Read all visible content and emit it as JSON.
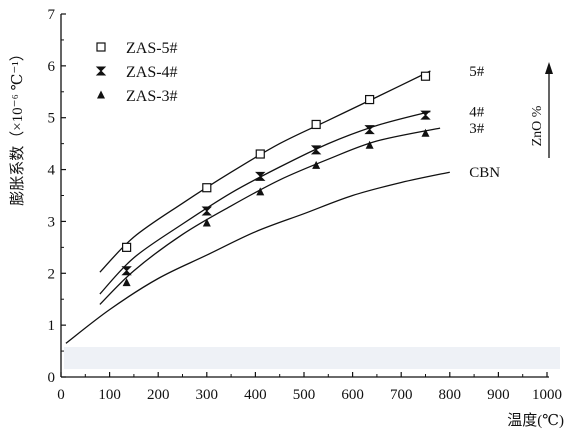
{
  "chart_data": {
    "type": "line",
    "xlabel": "温度(℃)",
    "ylabel": "膨胀系数（×10⁻⁶ ℃⁻¹）",
    "xlim": [
      0,
      1000
    ],
    "ylim": [
      0,
      7
    ],
    "xticks": [
      0,
      100,
      200,
      300,
      400,
      500,
      600,
      700,
      800,
      900,
      1000
    ],
    "yticks": [
      0,
      1,
      2,
      3,
      4,
      5,
      6,
      7
    ],
    "grid": false,
    "legend_position": "top-left",
    "side_label": "ZnO %",
    "series": [
      {
        "name": "ZAS-5#",
        "curve_label": "5#",
        "marker": "open-square",
        "points": {
          "x": [
            135,
            300,
            410,
            525,
            635,
            750
          ],
          "y": [
            2.5,
            3.65,
            4.3,
            4.87,
            5.35,
            5.8
          ]
        },
        "fit": {
          "x": [
            80,
            150,
            250,
            350,
            450,
            550,
            650,
            760
          ],
          "y": [
            2.02,
            2.7,
            3.35,
            3.95,
            4.5,
            4.95,
            5.4,
            5.9
          ]
        }
      },
      {
        "name": "ZAS-4#",
        "curve_label": "4#",
        "marker": "filled-hourglass",
        "points": {
          "x": [
            135,
            300,
            410,
            525,
            635,
            750
          ],
          "y": [
            2.05,
            3.2,
            3.87,
            4.38,
            4.77,
            5.05
          ]
        },
        "fit": {
          "x": [
            80,
            150,
            250,
            350,
            450,
            550,
            650,
            760
          ],
          "y": [
            1.6,
            2.3,
            2.95,
            3.55,
            4.05,
            4.5,
            4.85,
            5.12
          ]
        }
      },
      {
        "name": "ZAS-3#",
        "curve_label": "3#",
        "marker": "filled-triangle",
        "points": {
          "x": [
            135,
            300,
            410,
            525,
            635,
            750
          ],
          "y": [
            1.82,
            2.97,
            3.57,
            4.08,
            4.47,
            4.7
          ]
        },
        "fit": {
          "x": [
            80,
            150,
            250,
            350,
            450,
            550,
            650,
            780
          ],
          "y": [
            1.4,
            2.05,
            2.75,
            3.3,
            3.8,
            4.2,
            4.55,
            4.8
          ]
        }
      },
      {
        "name": "",
        "curve_label": "CBN",
        "marker": "none",
        "points": {
          "x": [],
          "y": []
        },
        "fit": {
          "x": [
            10,
            100,
            200,
            300,
            400,
            500,
            600,
            700,
            800
          ],
          "y": [
            0.65,
            1.3,
            1.9,
            2.35,
            2.8,
            3.15,
            3.5,
            3.75,
            3.95
          ]
        }
      }
    ]
  }
}
